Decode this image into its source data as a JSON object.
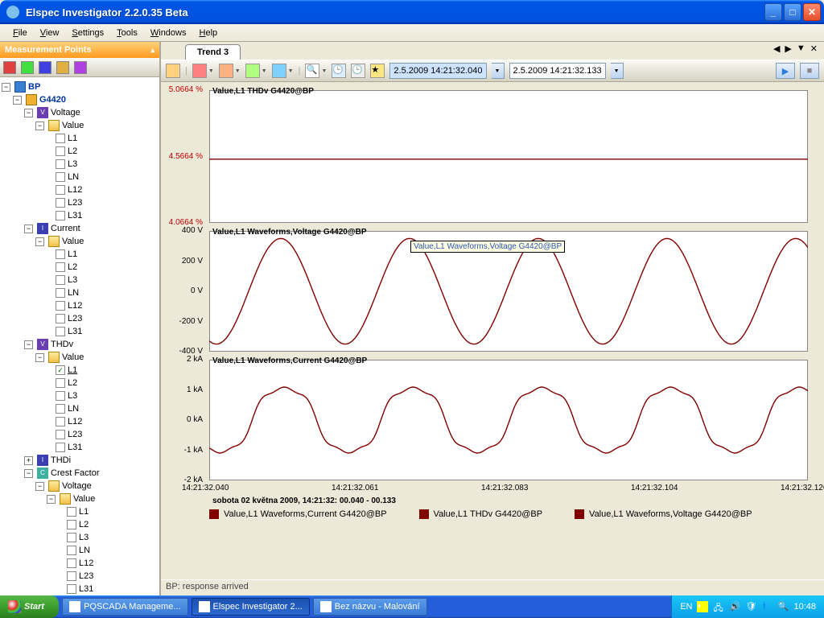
{
  "window": {
    "title": "Elspec Investigator 2.2.0.35 Beta"
  },
  "menu": {
    "file": "File",
    "view": "View",
    "settings": "Settings",
    "tools": "Tools",
    "windows": "Windows",
    "help": "Help"
  },
  "sidebar": {
    "header": "Measurement Points",
    "root": "BP",
    "device": "G4420",
    "groups": [
      {
        "name": "Voltage",
        "icon": "V",
        "sub": "Value",
        "checked": [
          false,
          false,
          false,
          false,
          false,
          false,
          false
        ]
      },
      {
        "name": "Current",
        "icon": "I",
        "sub": "Value",
        "checked": [
          false,
          false,
          false,
          false,
          false,
          false,
          false
        ]
      },
      {
        "name": "THDv",
        "icon": "V",
        "sub": "Value",
        "checked": [
          true,
          false,
          false,
          false,
          false,
          false,
          false
        ]
      },
      {
        "name": "THDi",
        "icon": "I",
        "sub": null,
        "collapsed": true
      },
      {
        "name": "Crest Factor",
        "icon": "C",
        "sub": "Voltage",
        "subsub": "Value",
        "checked": [
          false,
          false,
          false,
          false,
          false,
          false,
          false
        ]
      }
    ],
    "channels": [
      "L1",
      "L2",
      "L3",
      "LN",
      "L12",
      "L23",
      "L31"
    ]
  },
  "tab": {
    "label": "Trend 3"
  },
  "toolbar": {
    "datetime_from": "2.5.2009 14:21:32.040",
    "datetime_to": "2.5.2009 14:21:32.133"
  },
  "charts": {
    "line_color": "#800000",
    "grid_color": "#d0d0d0",
    "bg_color": "#ffffff",
    "xlabel_color": "#000000",
    "thdv": {
      "title": "Value,L1 THDv G4420@BP",
      "yticks": [
        "5.0664 %",
        "4.5664 %",
        "4.0664 %"
      ],
      "value_pct_of_range": 0.03,
      "ylim": [
        4.0664,
        5.0664
      ]
    },
    "voltage": {
      "title": "Value,L1 Waveforms,Voltage G4420@BP",
      "yticks": [
        "400 V",
        "200 V",
        "0 V",
        "-200 V",
        "-400 V"
      ],
      "amplitude": 350,
      "ylim": [
        -400,
        400
      ],
      "cycles": 4.65,
      "phase_deg": -110,
      "tooltip": "Value,L1 Waveforms,Voltage G4420@BP"
    },
    "current": {
      "title": "Value,L1 Waveforms,Current G4420@BP",
      "yticks": [
        "2 kA",
        "1 kA",
        "0 kA",
        "-1 kA",
        "-2 kA"
      ],
      "amplitude": 1.15,
      "ylim": [
        -2,
        2
      ],
      "cycles": 4.65,
      "phase_deg": -120,
      "harmonic3_amp": 0.12,
      "harmonic5_amp": 0.07
    },
    "xticks": [
      "14:21:32.040",
      "14:21:32.061",
      "14:21:32.083",
      "14:21:32.104",
      "14:21:32.126"
    ],
    "date_caption": "sobota 02 května 2009, 14:21:32: 00.040 - 00.133"
  },
  "legend": {
    "items": [
      "Value,L1 Waveforms,Current G4420@BP",
      "Value,L1 THDv G4420@BP",
      "Value,L1 Waveforms,Voltage G4420@BP"
    ],
    "swatch_color": "#800000"
  },
  "statusbar": {
    "text": "BP: response arrived"
  },
  "taskbar": {
    "start": "Start",
    "tasks": [
      {
        "label": "PQSCADA Manageme...",
        "active": false
      },
      {
        "label": "Elspec Investigator 2...",
        "active": true
      },
      {
        "label": "Bez názvu - Malování",
        "active": false
      }
    ],
    "lang": "EN",
    "clock": "10:48"
  }
}
